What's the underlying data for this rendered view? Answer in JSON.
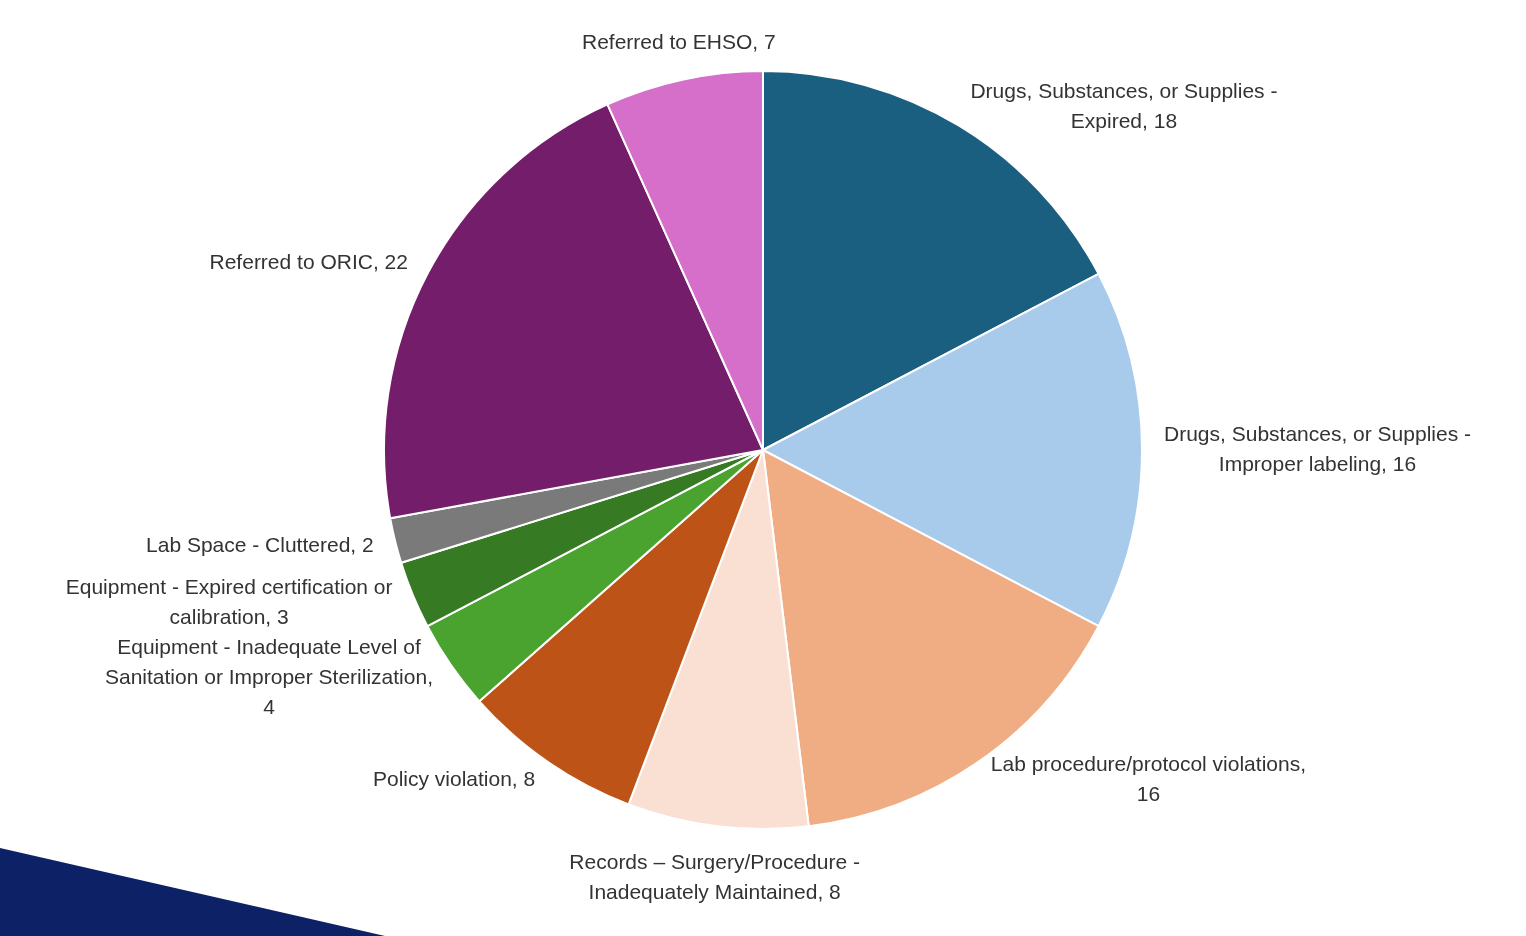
{
  "chart_data": {
    "type": "pie",
    "categories": [
      "Drugs, Substances, or Supplies - Expired, 18",
      "Drugs, Substances, or Supplies - Improper labeling, 16",
      "Lab procedure/protocol violations, 16",
      "Records – Surgery/Procedure - Inadequately Maintained, 8",
      "Policy violation, 8",
      "Equipment - Inadequate Level of Sanitation or Improper Sterilization, 4",
      "Equipment - Expired certification or calibration, 3",
      "Lab Space - Cluttered, 2",
      "Referred to ORIC, 22",
      "Referred to EHSO, 7"
    ],
    "values": [
      18,
      16,
      16,
      8,
      8,
      4,
      3,
      2,
      22,
      7
    ],
    "colors": [
      "#1a5e80",
      "#a8cbec",
      "#f0ad84",
      "#fae0d2",
      "#bd5316",
      "#4aa32e",
      "#367a23",
      "#7a7a7a",
      "#741e6b",
      "#d56fca"
    ],
    "legend": false
  }
}
